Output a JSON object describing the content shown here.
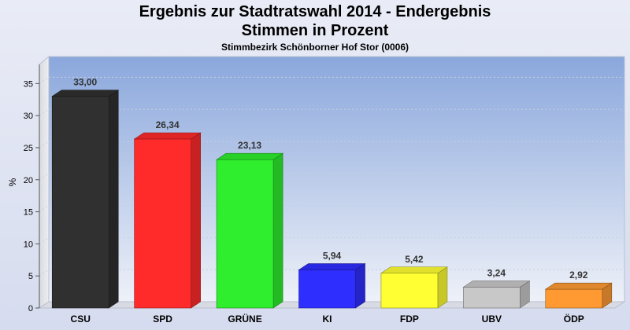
{
  "header": {
    "title": "Ergebnis zur Stadtratswahl 2014 - Endergebnis",
    "subtitle": "Stimmen in Prozent",
    "caption": "Stimmbezirk Schönborner Hof Stor (0006)"
  },
  "chart_data": {
    "type": "bar",
    "title": "Ergebnis zur Stadtratswahl 2014 - Endergebnis",
    "subtitle": "Stimmen in Prozent",
    "caption": "Stimmbezirk Schönborner Hof Stor (0006)",
    "ylabel": "%",
    "xlabel": "",
    "ylim": [
      0,
      37
    ],
    "yticks": [
      0,
      5,
      10,
      15,
      20,
      25,
      30,
      35
    ],
    "grid": true,
    "categories": [
      "CSU",
      "SPD",
      "GRÜNE",
      "KI",
      "FDP",
      "UBV",
      "ÖDP"
    ],
    "values": [
      33.0,
      26.34,
      23.13,
      5.94,
      5.42,
      3.24,
      2.92
    ],
    "value_labels": [
      "33,00",
      "26,34",
      "23,13",
      "5,94",
      "5,42",
      "3,24",
      "2,92"
    ],
    "colors": [
      "#303030",
      "#ff2a2a",
      "#2eee2e",
      "#2e2eff",
      "#ffff33",
      "#c8c8c8",
      "#ff9a33"
    ]
  }
}
